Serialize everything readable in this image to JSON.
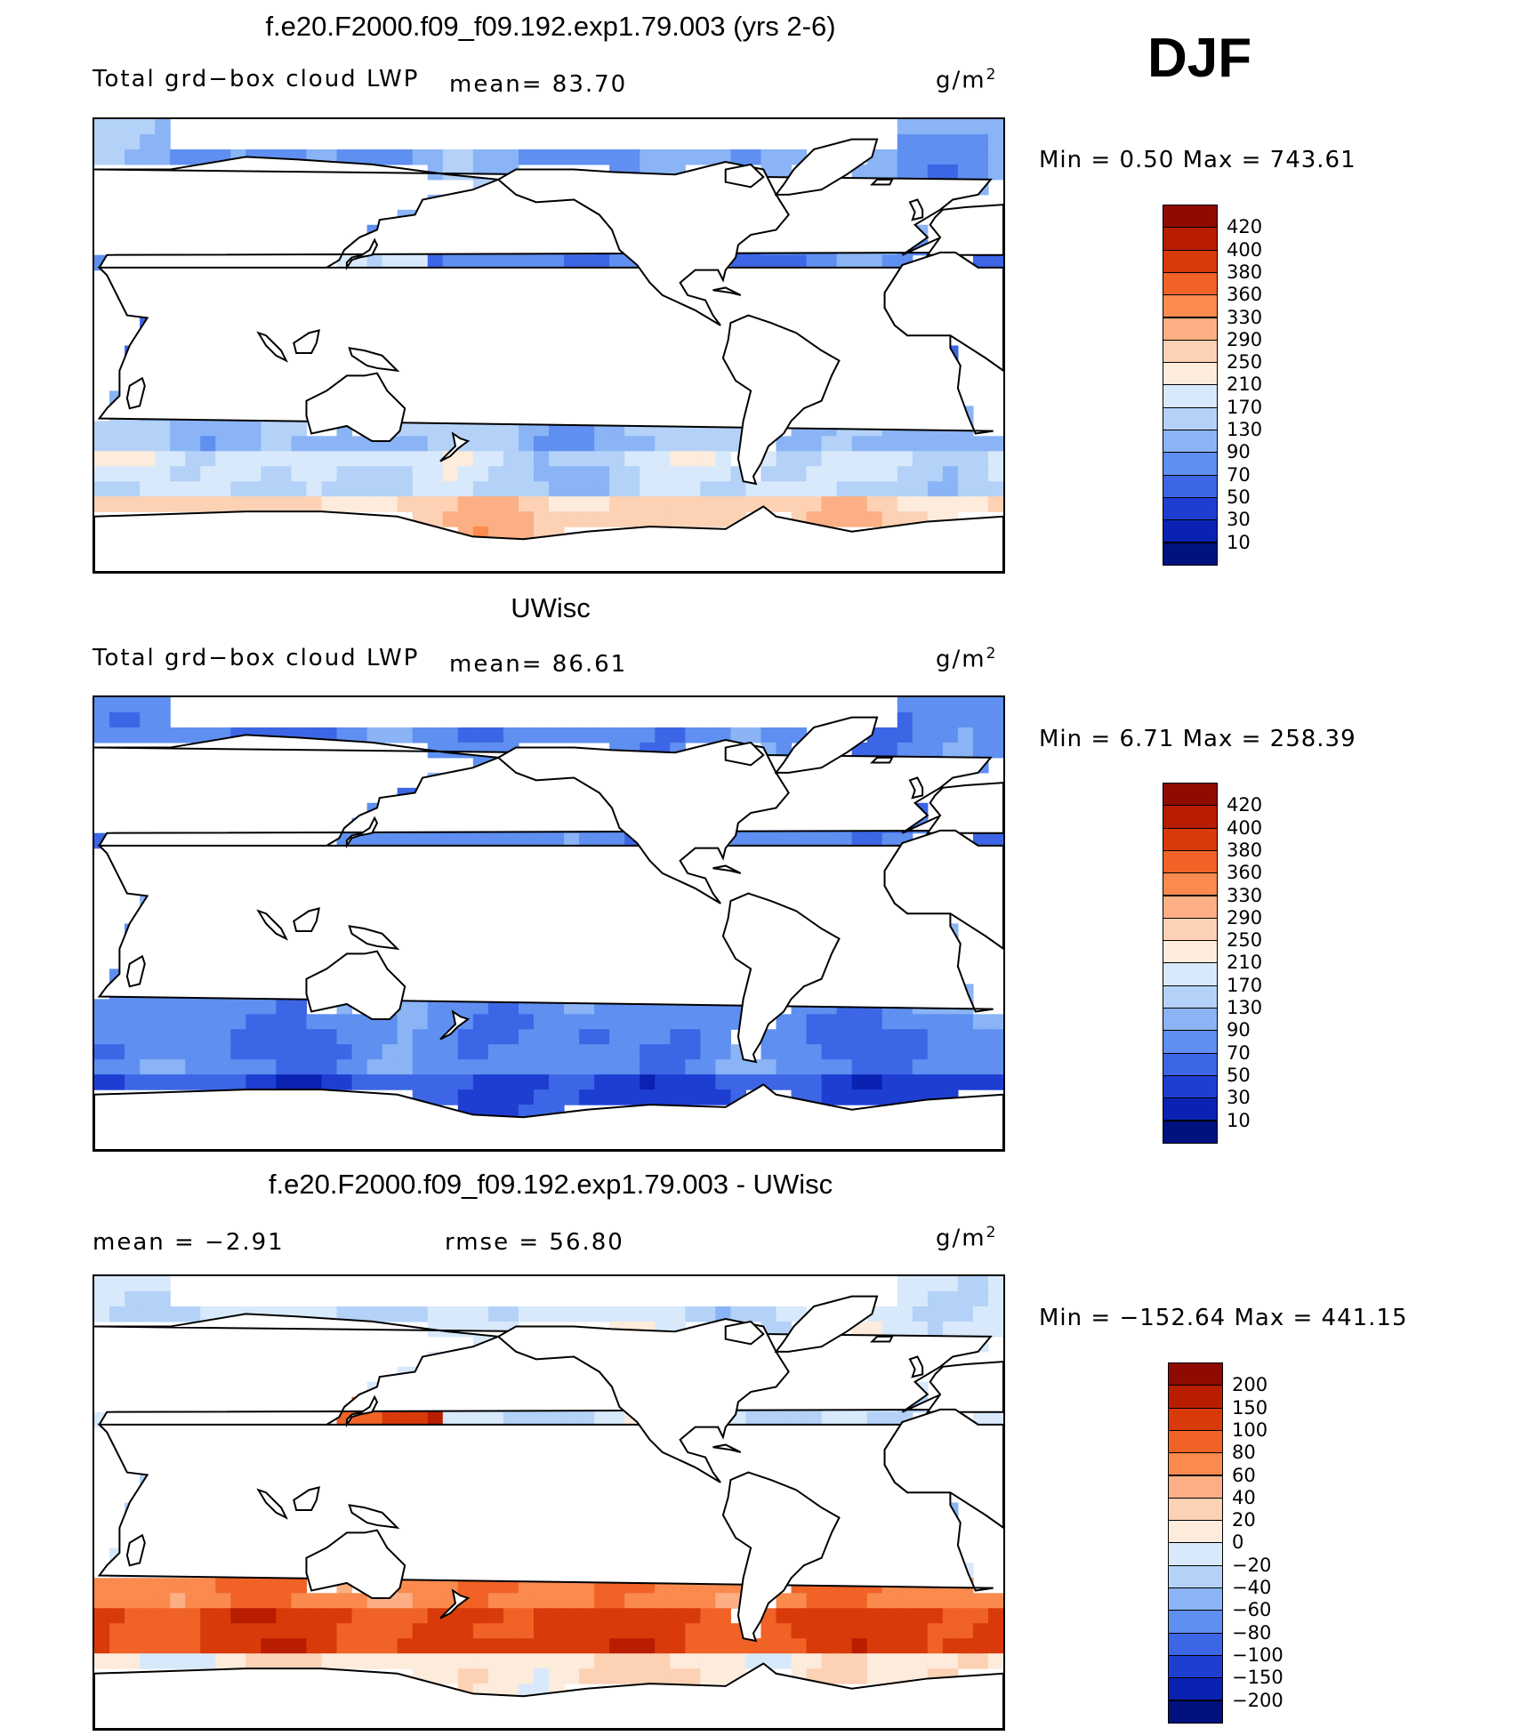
{
  "season": "DJF",
  "panels": [
    {
      "title": "f.e20.F2000.f09_f09.192.exp1.79.003 (yrs 2-6)",
      "left_label": "Total grd−box cloud LWP",
      "stat1": "mean=  83.70",
      "stat2": "",
      "units": "g/m",
      "units_exp": "2",
      "minmax": "Min =    0.50 Max = 743.61",
      "colorbar": {
        "levels": [
          "420",
          "400",
          "380",
          "360",
          "330",
          "290",
          "250",
          "210",
          "170",
          "130",
          "90",
          "70",
          "50",
          "30",
          "10"
        ],
        "colors": [
          "#8f0a00",
          "#b81d00",
          "#d93a0a",
          "#f06226",
          "#fa8a4e",
          "#fcaf84",
          "#fdd1b4",
          "#fdebdc",
          "#d8e9fb",
          "#b4d2f8",
          "#8ab4f5",
          "#5f8ff0",
          "#3d66e6",
          "#1e3ed2",
          "#0a22b2",
          "#00127e"
        ]
      },
      "field": "model"
    },
    {
      "title": "UWisc",
      "left_label": "Total grd−box cloud LWP",
      "stat1": "mean=  86.61",
      "stat2": "",
      "units": "g/m",
      "units_exp": "2",
      "minmax": "Min =   6.71 Max = 258.39",
      "colorbar": {
        "levels": [
          "420",
          "400",
          "380",
          "360",
          "330",
          "290",
          "250",
          "210",
          "170",
          "130",
          "90",
          "70",
          "50",
          "30",
          "10"
        ],
        "colors": [
          "#8f0a00",
          "#b81d00",
          "#d93a0a",
          "#f06226",
          "#fa8a4e",
          "#fcaf84",
          "#fdd1b4",
          "#fdebdc",
          "#d8e9fb",
          "#b4d2f8",
          "#8ab4f5",
          "#5f8ff0",
          "#3d66e6",
          "#1e3ed2",
          "#0a22b2",
          "#00127e"
        ]
      },
      "field": "obs"
    },
    {
      "title": "f.e20.F2000.f09_f09.192.exp1.79.003 - UWisc",
      "left_label": "mean =   −2.91",
      "stat1": "",
      "stat2": "rmse =   56.80",
      "units": "g/m",
      "units_exp": "2",
      "minmax": "Min = −152.64 Max = 441.15",
      "colorbar": {
        "levels": [
          "200",
          "150",
          "100",
          "80",
          "60",
          "40",
          "20",
          "0",
          "−20",
          "−40",
          "−60",
          "−80",
          "−100",
          "−150",
          "−200"
        ],
        "colors": [
          "#8f0a00",
          "#b81d00",
          "#d93a0a",
          "#f06226",
          "#fa8a4e",
          "#fcaf84",
          "#fdd1b4",
          "#fdebdc",
          "#d8e9fb",
          "#b4d2f8",
          "#8ab4f5",
          "#5f8ff0",
          "#3d66e6",
          "#1e3ed2",
          "#0a22b2",
          "#00127e"
        ]
      },
      "field": "diff"
    }
  ]
}
